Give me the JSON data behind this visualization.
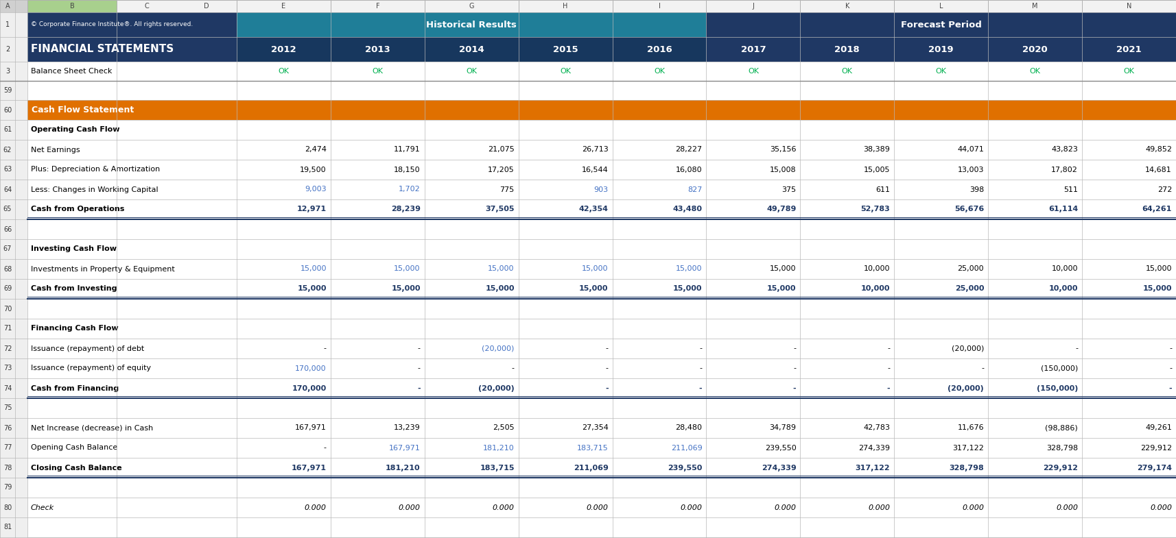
{
  "col_header_row1": {
    "copyright": "© Corporate Finance Institute®. All rights reserved.",
    "hist_label": "Historical Results",
    "forecast_label": "Forecast Period"
  },
  "col_header_row2": {
    "label": "FINANCIAL STATEMENTS",
    "years": [
      "2012",
      "2013",
      "2014",
      "2015",
      "2016",
      "2017",
      "2018",
      "2019",
      "2020",
      "2021"
    ]
  },
  "balance_sheet_check": {
    "label": "Balance Sheet Check",
    "values": [
      "OK",
      "OK",
      "OK",
      "OK",
      "OK",
      "OK",
      "OK",
      "OK",
      "OK",
      "OK"
    ]
  },
  "section_header": "Cash Flow Statement",
  "operating_header": "Operating Cash Flow",
  "investing_header": "Investing Cash Flow",
  "financing_header": "Financing Cash Flow",
  "rows": {
    "net_earnings": {
      "label": "Net Earnings",
      "values": [
        2474,
        11791,
        21075,
        26713,
        28227,
        35156,
        38389,
        44071,
        43823,
        49852
      ],
      "blue": [
        false,
        false,
        false,
        false,
        false,
        false,
        false,
        false,
        false,
        false
      ],
      "bold": false
    },
    "dna": {
      "label": "Plus: Depreciation & Amortization",
      "values": [
        19500,
        18150,
        17205,
        16544,
        16080,
        15008,
        15005,
        13003,
        17802,
        14681
      ],
      "blue": [
        false,
        false,
        false,
        false,
        false,
        false,
        false,
        false,
        false,
        false
      ],
      "bold": false
    },
    "working_capital": {
      "label": "Less: Changes in Working Capital",
      "values": [
        9003,
        1702,
        775,
        903,
        827,
        375,
        611,
        398,
        511,
        272
      ],
      "blue": [
        true,
        true,
        false,
        true,
        true,
        false,
        false,
        false,
        false,
        false
      ],
      "bold": false
    },
    "cash_from_ops": {
      "label": "Cash from Operations",
      "values": [
        12971,
        28239,
        37505,
        42354,
        43480,
        49789,
        52783,
        56676,
        61114,
        64261
      ],
      "blue": [
        false,
        false,
        false,
        false,
        false,
        false,
        false,
        false,
        false,
        false
      ],
      "bold": true
    },
    "investments": {
      "label": "Investments in Property & Equipment",
      "values": [
        15000,
        15000,
        15000,
        15000,
        15000,
        15000,
        10000,
        25000,
        10000,
        15000
      ],
      "blue": [
        true,
        true,
        true,
        true,
        true,
        false,
        false,
        false,
        false,
        false
      ],
      "bold": false
    },
    "cash_from_investing": {
      "label": "Cash from Investing",
      "values": [
        15000,
        15000,
        15000,
        15000,
        15000,
        15000,
        10000,
        25000,
        10000,
        15000
      ],
      "blue": [
        false,
        false,
        false,
        false,
        false,
        false,
        false,
        false,
        false,
        false
      ],
      "bold": true
    },
    "debt": {
      "label": "Issuance (repayment) of debt",
      "values": [
        null,
        null,
        -20000,
        null,
        null,
        null,
        null,
        -20000,
        null,
        null
      ],
      "blue": [
        false,
        false,
        true,
        false,
        false,
        false,
        false,
        false,
        false,
        false
      ],
      "bold": false
    },
    "equity": {
      "label": "Issuance (repayment) of equity",
      "values": [
        170000,
        null,
        null,
        null,
        null,
        null,
        null,
        null,
        -150000,
        null
      ],
      "blue": [
        true,
        false,
        false,
        false,
        false,
        false,
        false,
        false,
        false,
        false
      ],
      "bold": false
    },
    "cash_from_financing": {
      "label": "Cash from Financing",
      "values": [
        170000,
        null,
        -20000,
        null,
        null,
        null,
        null,
        -20000,
        -150000,
        null
      ],
      "blue": [
        false,
        false,
        false,
        false,
        false,
        false,
        false,
        false,
        false,
        false
      ],
      "bold": true
    },
    "net_increase": {
      "label": "Net Increase (decrease) in Cash",
      "values": [
        167971,
        13239,
        2505,
        27354,
        28480,
        34789,
        42783,
        11676,
        -98886,
        49261
      ],
      "blue": [
        false,
        false,
        false,
        false,
        false,
        false,
        false,
        false,
        false,
        false
      ],
      "bold": false
    },
    "opening_cash": {
      "label": "Opening Cash Balance",
      "values": [
        null,
        167971,
        181210,
        183715,
        211069,
        239550,
        274339,
        317122,
        328798,
        229912
      ],
      "blue": [
        false,
        true,
        true,
        true,
        true,
        false,
        false,
        false,
        false,
        false
      ],
      "bold": false
    },
    "closing_cash": {
      "label": "Closing Cash Balance",
      "values": [
        167971,
        181210,
        183715,
        211069,
        239550,
        274339,
        317122,
        328798,
        229912,
        279174
      ],
      "blue": [
        false,
        false,
        false,
        false,
        false,
        false,
        false,
        false,
        false,
        false
      ],
      "bold": true
    },
    "check": {
      "label": "Check",
      "values": [
        0.0,
        0.0,
        0.0,
        0.0,
        0.0,
        0.0,
        0.0,
        0.0,
        0.0,
        0.0
      ],
      "bold": false,
      "italic": true
    }
  },
  "colors": {
    "dark_navy": "#1F3864",
    "hist_teal": "#1F7E98",
    "hist_dark": "#17375E",
    "orange": "#E07000",
    "white": "#FFFFFF",
    "blue_link": "#4472C4",
    "green_ok": "#00B050",
    "row_num_bg": "#EFEFEF",
    "col_letter_bg": "#F2F2F2",
    "b_col_green": "#A8D08D",
    "grid_line": "#C0C0C0",
    "white_row": "#FFFFFF",
    "bold_navy": "#1F3864"
  }
}
